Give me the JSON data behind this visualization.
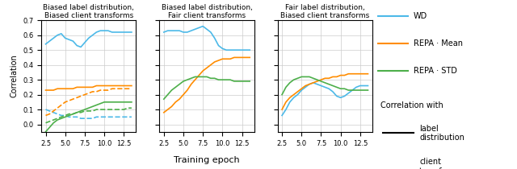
{
  "x": [
    2.5,
    3.0,
    3.5,
    4.0,
    4.5,
    5.0,
    5.5,
    6.0,
    6.5,
    7.0,
    7.5,
    8.0,
    8.5,
    9.0,
    9.5,
    10.0,
    10.5,
    11.0,
    11.5,
    12.0,
    12.5,
    13.0,
    13.5
  ],
  "panel1": {
    "title": "Biased label distribution,\nBiased client transforms",
    "WD_solid": [
      0.54,
      0.56,
      0.58,
      0.6,
      0.61,
      0.58,
      0.57,
      0.56,
      0.53,
      0.52,
      0.55,
      0.58,
      0.6,
      0.62,
      0.63,
      0.63,
      0.63,
      0.62,
      0.62,
      0.62,
      0.62,
      0.62,
      0.62
    ],
    "WD_dashed": [
      0.1,
      0.09,
      0.08,
      0.07,
      0.06,
      0.06,
      0.05,
      0.05,
      0.05,
      0.04,
      0.04,
      0.04,
      0.04,
      0.05,
      0.05,
      0.05,
      0.05,
      0.05,
      0.05,
      0.05,
      0.05,
      0.05,
      0.05
    ],
    "REPA_mean_solid": [
      0.23,
      0.23,
      0.23,
      0.24,
      0.24,
      0.24,
      0.24,
      0.24,
      0.25,
      0.25,
      0.25,
      0.25,
      0.25,
      0.26,
      0.26,
      0.26,
      0.26,
      0.26,
      0.26,
      0.26,
      0.26,
      0.26,
      0.26
    ],
    "REPA_mean_dashed": [
      0.06,
      0.07,
      0.09,
      0.11,
      0.13,
      0.15,
      0.16,
      0.17,
      0.18,
      0.19,
      0.2,
      0.21,
      0.22,
      0.22,
      0.23,
      0.23,
      0.23,
      0.24,
      0.24,
      0.24,
      0.24,
      0.24,
      0.24
    ],
    "REPA_std_solid": [
      -0.05,
      -0.02,
      0.01,
      0.03,
      0.04,
      0.05,
      0.06,
      0.07,
      0.08,
      0.09,
      0.1,
      0.11,
      0.12,
      0.13,
      0.14,
      0.15,
      0.15,
      0.15,
      0.15,
      0.15,
      0.15,
      0.15,
      0.15
    ],
    "REPA_std_dashed": [
      0.01,
      0.02,
      0.03,
      0.04,
      0.05,
      0.06,
      0.07,
      0.07,
      0.08,
      0.08,
      0.09,
      0.09,
      0.09,
      0.1,
      0.1,
      0.1,
      0.1,
      0.1,
      0.1,
      0.1,
      0.1,
      0.11,
      0.11
    ]
  },
  "panel2": {
    "title": "Biased label distribution,\nFair client transforms",
    "WD_solid": [
      0.62,
      0.63,
      0.63,
      0.63,
      0.63,
      0.62,
      0.62,
      0.63,
      0.64,
      0.65,
      0.66,
      0.64,
      0.62,
      0.58,
      0.53,
      0.51,
      0.5,
      0.5,
      0.5,
      0.5,
      0.5,
      0.5,
      0.5
    ],
    "WD_dashed": [
      0.62,
      0.63,
      0.63,
      0.63,
      0.63,
      0.62,
      0.62,
      0.63,
      0.64,
      0.65,
      0.66,
      0.64,
      0.62,
      0.58,
      0.53,
      0.51,
      0.5,
      0.5,
      0.5,
      0.5,
      0.5,
      0.5,
      0.5
    ],
    "REPA_mean_solid": [
      0.08,
      0.1,
      0.12,
      0.15,
      0.17,
      0.2,
      0.23,
      0.27,
      0.3,
      0.33,
      0.36,
      0.38,
      0.4,
      0.42,
      0.43,
      0.44,
      0.44,
      0.44,
      0.45,
      0.45,
      0.45,
      0.45,
      0.45
    ],
    "REPA_mean_dashed": [
      0.08,
      0.1,
      0.12,
      0.15,
      0.17,
      0.2,
      0.23,
      0.27,
      0.3,
      0.33,
      0.36,
      0.38,
      0.4,
      0.42,
      0.43,
      0.44,
      0.44,
      0.44,
      0.45,
      0.45,
      0.45,
      0.45,
      0.45
    ],
    "REPA_std_solid": [
      0.17,
      0.2,
      0.23,
      0.25,
      0.27,
      0.29,
      0.3,
      0.31,
      0.32,
      0.32,
      0.32,
      0.32,
      0.31,
      0.31,
      0.3,
      0.3,
      0.3,
      0.3,
      0.29,
      0.29,
      0.29,
      0.29,
      0.29
    ],
    "REPA_std_dashed": [
      0.17,
      0.2,
      0.23,
      0.25,
      0.27,
      0.29,
      0.3,
      0.31,
      0.32,
      0.32,
      0.32,
      0.32,
      0.31,
      0.31,
      0.3,
      0.3,
      0.3,
      0.3,
      0.29,
      0.29,
      0.29,
      0.29,
      0.29
    ]
  },
  "panel3": {
    "title": "Fair label distribution,\nBiased client transforms",
    "WD_solid": [
      0.06,
      0.1,
      0.15,
      0.18,
      0.2,
      0.23,
      0.25,
      0.27,
      0.28,
      0.27,
      0.26,
      0.25,
      0.24,
      0.22,
      0.19,
      0.18,
      0.19,
      0.21,
      0.23,
      0.25,
      0.26,
      0.26,
      0.26
    ],
    "WD_dashed": [
      0.06,
      0.1,
      0.15,
      0.18,
      0.2,
      0.23,
      0.25,
      0.27,
      0.28,
      0.27,
      0.26,
      0.25,
      0.24,
      0.22,
      0.19,
      0.18,
      0.19,
      0.21,
      0.23,
      0.25,
      0.26,
      0.26,
      0.26
    ],
    "REPA_mean_solid": [
      0.1,
      0.15,
      0.18,
      0.2,
      0.22,
      0.24,
      0.26,
      0.27,
      0.28,
      0.29,
      0.3,
      0.31,
      0.31,
      0.32,
      0.32,
      0.33,
      0.33,
      0.34,
      0.34,
      0.34,
      0.34,
      0.34,
      0.34
    ],
    "REPA_mean_dashed": [
      0.1,
      0.15,
      0.18,
      0.2,
      0.22,
      0.24,
      0.26,
      0.27,
      0.28,
      0.29,
      0.3,
      0.31,
      0.31,
      0.32,
      0.32,
      0.33,
      0.33,
      0.34,
      0.34,
      0.34,
      0.34,
      0.34,
      0.34
    ],
    "REPA_std_solid": [
      0.2,
      0.25,
      0.28,
      0.3,
      0.31,
      0.32,
      0.32,
      0.32,
      0.31,
      0.3,
      0.29,
      0.28,
      0.27,
      0.26,
      0.25,
      0.24,
      0.24,
      0.23,
      0.23,
      0.23,
      0.23,
      0.23,
      0.23
    ],
    "REPA_std_dashed": [
      0.2,
      0.25,
      0.28,
      0.3,
      0.31,
      0.32,
      0.32,
      0.32,
      0.31,
      0.3,
      0.29,
      0.28,
      0.27,
      0.26,
      0.25,
      0.24,
      0.24,
      0.23,
      0.23,
      0.23,
      0.23,
      0.23,
      0.23
    ]
  },
  "colors": {
    "WD": "#4cb9e8",
    "REPA_mean": "#ff8c00",
    "REPA_std": "#4daf4a"
  },
  "ylim": [
    -0.05,
    0.7
  ],
  "yticks": [
    0.0,
    0.1,
    0.2,
    0.3,
    0.4,
    0.5,
    0.6,
    0.7
  ],
  "xticks": [
    2.5,
    5.0,
    7.5,
    10.0,
    12.5
  ],
  "xlabel": "Training epoch",
  "ylabel": "Correlation"
}
